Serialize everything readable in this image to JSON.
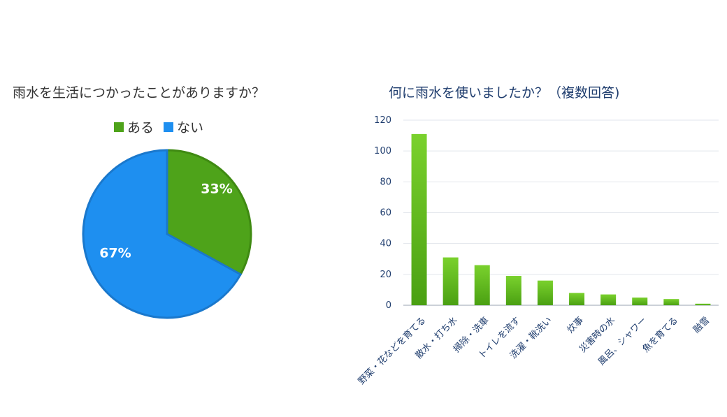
{
  "chart_data": [
    {
      "type": "pie",
      "title": "雨水を生活につかったことがありますか？",
      "slices": [
        {
          "name": "ある",
          "value": 33,
          "label": "33%",
          "color": "#4ea31a"
        },
        {
          "name": "ない",
          "value": 67,
          "label": "67%",
          "color": "#1e8ff0"
        }
      ],
      "legend": "top"
    },
    {
      "type": "bar",
      "title": "何に雨水を使いましたか？（複数回答)",
      "categories": [
        "野菜・花などを育てる",
        "散水・打ち水",
        "掃除・洗車",
        "トイレを流す",
        "洗濯・靴洗い",
        "炊事",
        "災害時の水",
        "風呂、シャワー",
        "魚を育てる",
        "融雪"
      ],
      "values": [
        111,
        31,
        26,
        19,
        16,
        8,
        7,
        5,
        4,
        1
      ],
      "yticks": [
        "0",
        "20",
        "40",
        "60",
        "80",
        "100",
        "120"
      ],
      "ylim": [
        0,
        120
      ],
      "grid": true,
      "bar_color": "#5cb61d"
    }
  ]
}
